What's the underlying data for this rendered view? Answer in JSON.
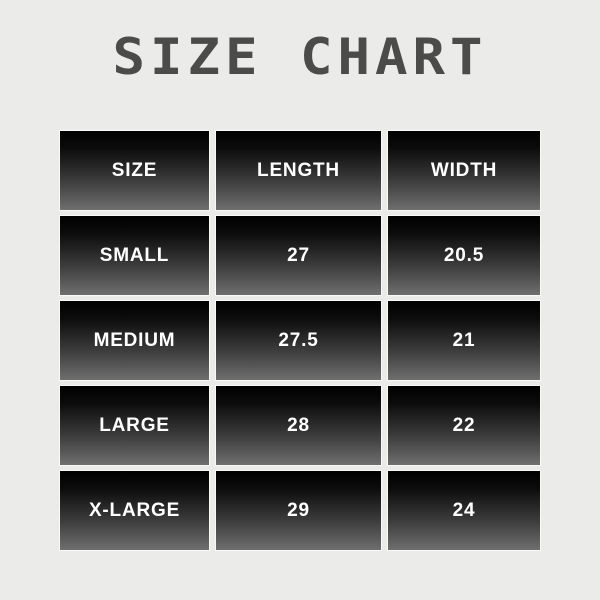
{
  "page": {
    "background_color": "#ebece9"
  },
  "title": {
    "text": "SIZE CHART",
    "color": "#4b4b49"
  },
  "colors": {
    "page_background": "#ebece9",
    "title_color": "#4b4b49",
    "cell_gradient_top": "#000000",
    "cell_gradient_bottom": "#6f6f6f",
    "cell_text": "#ffffff"
  },
  "chart_data": {
    "type": "table",
    "title": "SIZE CHART",
    "columns": [
      "SIZE",
      "LENGTH",
      "WIDTH"
    ],
    "rows": [
      [
        "SMALL",
        "27",
        "20.5"
      ],
      [
        "MEDIUM",
        "27.5",
        "21"
      ],
      [
        "LARGE",
        "28",
        "22"
      ],
      [
        "X-LARGE",
        "29",
        "24"
      ]
    ],
    "layout_hints": {
      "header_style": "same gradient as body rows",
      "grid": "separated cells with light background gaps"
    }
  }
}
